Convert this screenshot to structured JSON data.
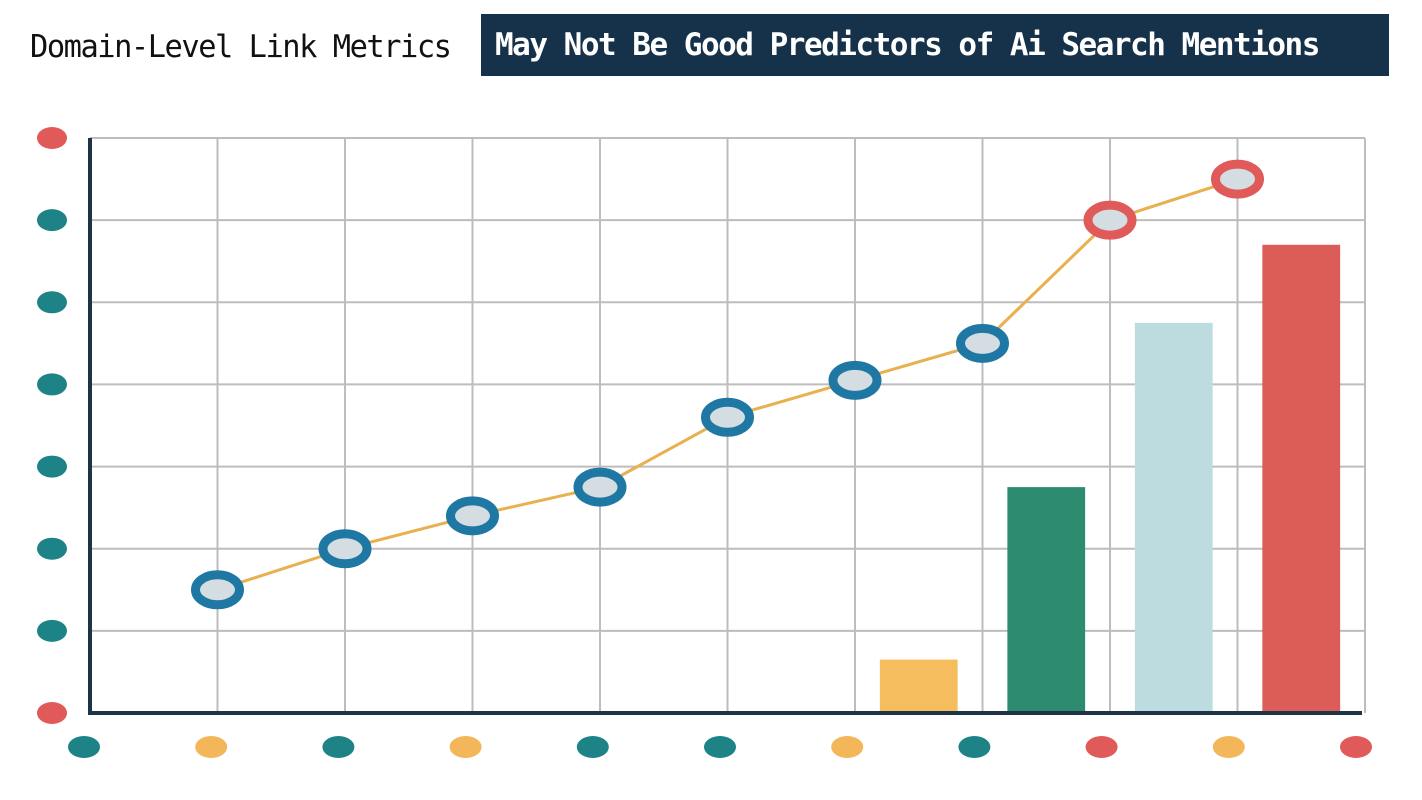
{
  "title": {
    "plain": "Domain-Level Link Metrics",
    "highlight": "May Not Be Good Predictors of Ai Search Mentions"
  },
  "colors": {
    "banner_bg": "#16314a",
    "axis": "#1f3347",
    "grid": "#bdbdbd",
    "line": "#e8b04e",
    "marker_blue": "#1f78a4",
    "marker_red": "#e05a5a",
    "marker_fill": "#d4dde1",
    "teal_dot": "#1d8387",
    "yellow_dot": "#f3b659",
    "red_dot": "#e05a5a"
  },
  "chart_data": {
    "type": "line",
    "title": "Domain-Level Link Metrics May Not Be Good Predictors of Ai Search Mentions",
    "xlabel": "",
    "ylabel": "",
    "grid": true,
    "xlim": [
      0,
      10
    ],
    "ylim": [
      0,
      7
    ],
    "x_ticks": [
      1,
      2,
      3,
      4,
      5,
      6,
      7,
      8,
      9,
      10
    ],
    "y_ticks": [
      1,
      2,
      3,
      4,
      5,
      6,
      7
    ],
    "series": [
      {
        "type": "line",
        "x": [
          1,
          2,
          3,
          4,
          5,
          6,
          7,
          8,
          9
        ],
        "y": [
          1.5,
          2.0,
          2.4,
          2.75,
          3.6,
          4.05,
          4.5,
          6.0,
          6.5
        ],
        "marker_colors": [
          "blue",
          "blue",
          "blue",
          "blue",
          "blue",
          "blue",
          "blue",
          "red",
          "red"
        ]
      },
      {
        "type": "bar",
        "x": [
          6.5,
          7.5,
          8.5,
          9.5
        ],
        "y": [
          0.65,
          2.75,
          4.75,
          5.7
        ],
        "colors": [
          "#f5bd5d",
          "#2d8c6f",
          "#bcdce0",
          "#dc5c58"
        ]
      }
    ],
    "y_axis_dots": [
      "red",
      "teal",
      "teal",
      "teal",
      "teal",
      "teal",
      "teal",
      "red"
    ],
    "x_axis_dots": [
      "teal",
      "yellow",
      "teal",
      "yellow",
      "teal",
      "teal",
      "yellow",
      "teal",
      "red",
      "yellow",
      "red"
    ]
  }
}
